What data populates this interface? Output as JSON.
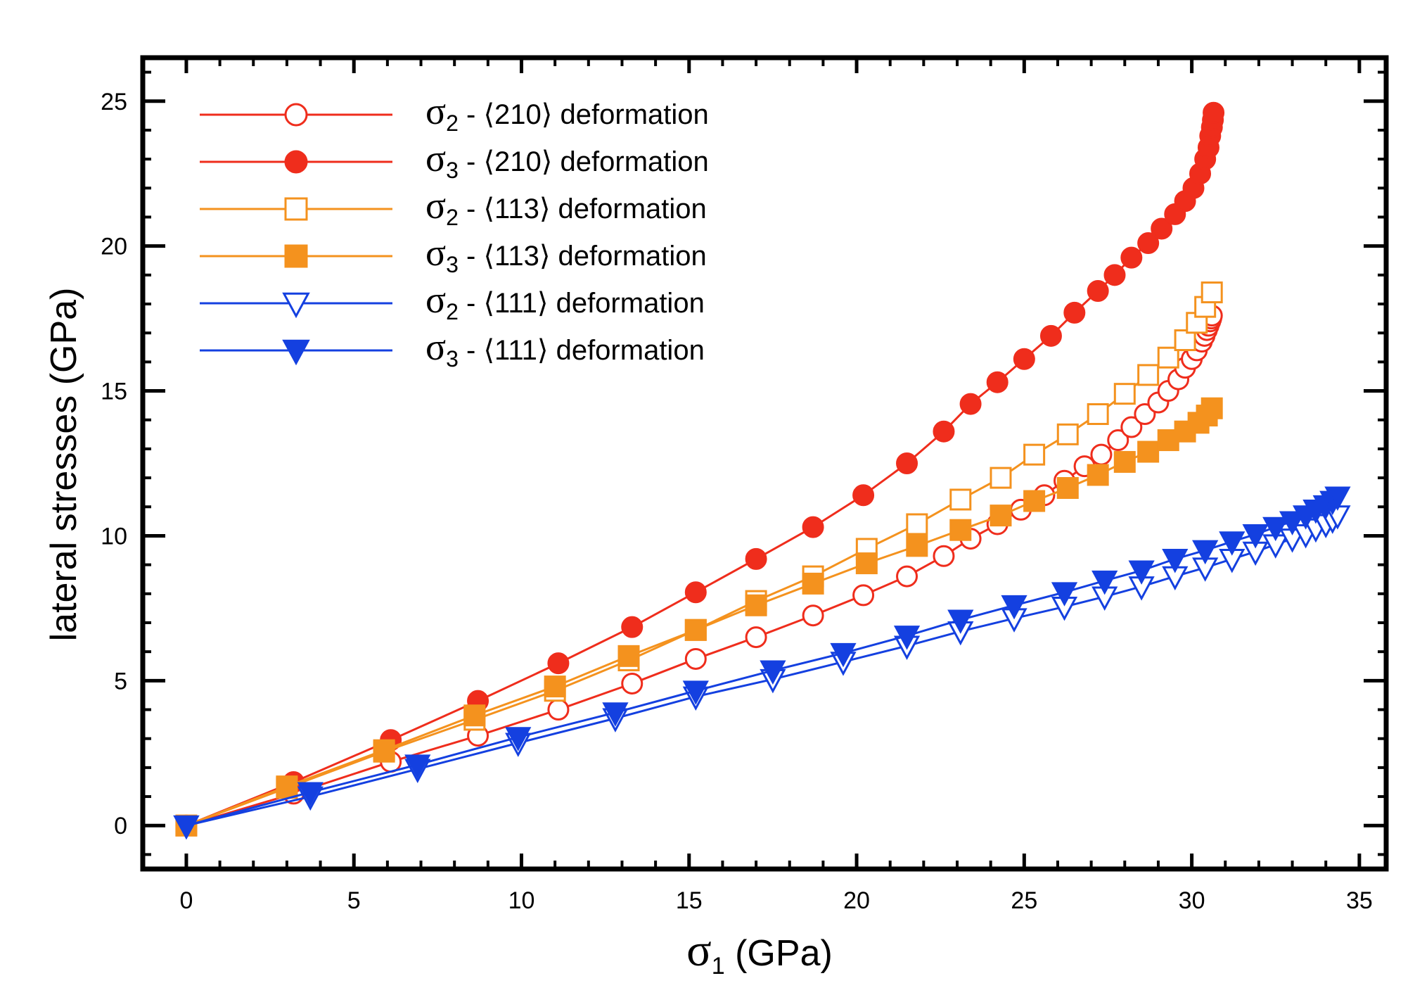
{
  "chart_data": {
    "type": "line",
    "title": "",
    "xlabel": {
      "symbol": "σ",
      "sub": "1",
      "unit": " (GPa)"
    },
    "ylabel": "lateral stresses (GPa)",
    "xlim": [
      -1.3,
      35.8
    ],
    "ylim": [
      -1.5,
      26.5
    ],
    "x_ticks": [
      0,
      5,
      10,
      15,
      20,
      25,
      30,
      35
    ],
    "y_ticks": [
      0,
      5,
      10,
      15,
      20,
      25
    ],
    "x_tick_labels": [
      "0",
      "5",
      "10",
      "15",
      "20",
      "25",
      "30",
      "35"
    ],
    "y_tick_labels": [
      "0",
      "5",
      "10",
      "15",
      "20",
      "25"
    ],
    "legend_position": "top-left",
    "series": [
      {
        "name": "σ2 - ⟨210⟩ deformation",
        "sym": "σ",
        "sub": "2",
        "label_rest": " - ⟨210⟩ deformation",
        "color": "#ef2d1c",
        "marker": "circle",
        "filled": false,
        "x": [
          0,
          3.2,
          6.1,
          8.7,
          11.1,
          13.3,
          15.2,
          17.0,
          18.7,
          20.2,
          21.5,
          22.6,
          23.4,
          24.2,
          24.9,
          25.6,
          26.2,
          26.8,
          27.3,
          27.8,
          28.2,
          28.6,
          29.0,
          29.3,
          29.6,
          29.8,
          30.0,
          30.15,
          30.3,
          30.38,
          30.45,
          30.5,
          30.55,
          30.58,
          30.6
        ],
        "y": [
          0,
          1.1,
          2.2,
          3.1,
          4.0,
          4.9,
          5.75,
          6.5,
          7.25,
          7.95,
          8.6,
          9.3,
          9.9,
          10.4,
          10.9,
          11.4,
          11.9,
          12.4,
          12.8,
          13.3,
          13.75,
          14.2,
          14.6,
          15.0,
          15.4,
          15.8,
          16.1,
          16.4,
          16.7,
          16.9,
          17.1,
          17.25,
          17.4,
          17.5,
          17.6
        ]
      },
      {
        "name": "σ3 - ⟨210⟩ deformation",
        "sym": "σ",
        "sub": "3",
        "label_rest": " - ⟨210⟩ deformation",
        "color": "#ef2d1c",
        "marker": "circle",
        "filled": true,
        "x": [
          0,
          3.2,
          6.1,
          8.7,
          11.1,
          13.3,
          15.2,
          17.0,
          18.7,
          20.2,
          21.5,
          22.6,
          23.4,
          24.2,
          25.0,
          25.8,
          26.5,
          27.2,
          27.7,
          28.2,
          28.7,
          29.1,
          29.5,
          29.8,
          30.05,
          30.25,
          30.4,
          30.5,
          30.55,
          30.6,
          30.63,
          30.65
        ],
        "y": [
          0,
          1.5,
          2.95,
          4.3,
          5.6,
          6.85,
          8.05,
          9.2,
          10.3,
          11.4,
          12.5,
          13.6,
          14.55,
          15.3,
          16.1,
          16.9,
          17.7,
          18.45,
          19.0,
          19.6,
          20.1,
          20.6,
          21.1,
          21.55,
          22.0,
          22.5,
          23.0,
          23.4,
          23.8,
          24.1,
          24.35,
          24.6
        ]
      },
      {
        "name": "σ2 - ⟨113⟩ deformation",
        "sym": "σ",
        "sub": "2",
        "label_rest": " - ⟨113⟩ deformation",
        "color": "#f4921e",
        "marker": "square",
        "filled": false,
        "x": [
          0,
          3.0,
          5.9,
          8.6,
          11.0,
          13.2,
          15.2,
          17.0,
          18.7,
          20.3,
          21.8,
          23.1,
          24.3,
          25.3,
          26.3,
          27.2,
          28.0,
          28.7,
          29.3,
          29.8,
          30.15,
          30.4,
          30.6
        ],
        "y": [
          0,
          1.3,
          2.55,
          3.65,
          4.65,
          5.7,
          6.75,
          7.75,
          8.6,
          9.55,
          10.4,
          11.25,
          12.0,
          12.8,
          13.5,
          14.2,
          14.9,
          15.55,
          16.15,
          16.75,
          17.35,
          17.9,
          18.4
        ]
      },
      {
        "name": "σ3 - ⟨113⟩ deformation",
        "sym": "σ",
        "sub": "3",
        "label_rest": " - ⟨113⟩ deformation",
        "color": "#f4921e",
        "marker": "square",
        "filled": true,
        "x": [
          0,
          3.0,
          5.9,
          8.6,
          11.0,
          13.2,
          15.2,
          17.0,
          18.7,
          20.3,
          21.8,
          23.1,
          24.3,
          25.3,
          26.3,
          27.2,
          28.0,
          28.7,
          29.3,
          29.8,
          30.2,
          30.45,
          30.6
        ],
        "y": [
          0,
          1.35,
          2.6,
          3.8,
          4.8,
          5.85,
          6.75,
          7.6,
          8.35,
          9.05,
          9.65,
          10.2,
          10.7,
          11.2,
          11.65,
          12.1,
          12.55,
          12.9,
          13.3,
          13.6,
          13.9,
          14.15,
          14.4
        ]
      },
      {
        "name": "σ2 - ⟨111⟩ deformation",
        "sym": "σ",
        "sub": "2",
        "label_rest": " - ⟨111⟩ deformation",
        "color": "#1440e0",
        "marker": "triangle-down",
        "filled": false,
        "x": [
          0,
          3.7,
          6.9,
          9.9,
          12.8,
          15.2,
          17.5,
          19.6,
          21.5,
          23.1,
          24.7,
          26.2,
          27.4,
          28.5,
          29.5,
          30.4,
          31.2,
          31.9,
          32.5,
          33.0,
          33.4,
          33.7,
          34.0,
          34.2,
          34.35
        ],
        "y": [
          0,
          1.0,
          1.95,
          2.85,
          3.7,
          4.45,
          5.05,
          5.65,
          6.2,
          6.7,
          7.15,
          7.55,
          7.9,
          8.25,
          8.6,
          8.9,
          9.2,
          9.45,
          9.7,
          9.9,
          10.05,
          10.25,
          10.4,
          10.55,
          10.7
        ]
      },
      {
        "name": "σ3 - ⟨111⟩ deformation",
        "sym": "σ",
        "sub": "3",
        "label_rest": " - ⟨111⟩ deformation",
        "color": "#1440e0",
        "marker": "triangle-down",
        "filled": true,
        "x": [
          0,
          3.7,
          6.9,
          9.9,
          12.8,
          15.2,
          17.5,
          19.6,
          21.5,
          23.1,
          24.7,
          26.2,
          27.4,
          28.5,
          29.5,
          30.4,
          31.2,
          31.9,
          32.5,
          33.0,
          33.4,
          33.7,
          34.0,
          34.2,
          34.35
        ],
        "y": [
          0,
          1.15,
          2.1,
          3.05,
          3.9,
          4.65,
          5.35,
          5.95,
          6.55,
          7.1,
          7.6,
          8.05,
          8.45,
          8.8,
          9.2,
          9.5,
          9.8,
          10.05,
          10.3,
          10.5,
          10.7,
          10.9,
          11.05,
          11.2,
          11.35
        ]
      }
    ]
  }
}
